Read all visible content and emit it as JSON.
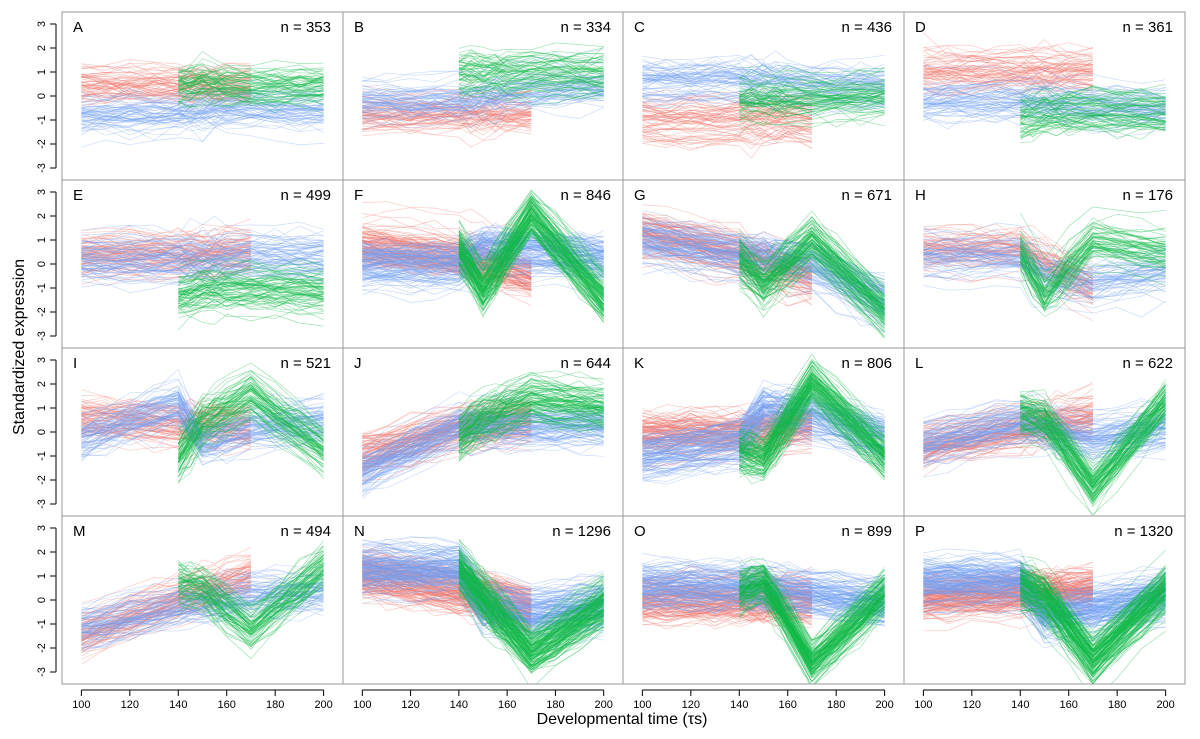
{
  "chart_data": {
    "type": "line",
    "xlabel": "Developmental time (τs)",
    "ylabel": "Standardized expression",
    "xlim": [
      92,
      208
    ],
    "ylim": [
      -3.5,
      3.5
    ],
    "x_ticks": [
      100,
      120,
      140,
      160,
      180,
      200
    ],
    "y_ticks": [
      -3,
      -2,
      -1,
      0,
      1,
      2,
      3
    ],
    "grid": false,
    "layout": "4x4",
    "colors": {
      "red": "#f1776b",
      "blue": "#6f9ef3",
      "green": "#0eb847"
    },
    "series_segments": {
      "red": [
        100,
        170
      ],
      "blue": [
        100,
        200
      ],
      "green": [
        140,
        200
      ]
    },
    "panels": [
      {
        "label": "A",
        "n_label": "n = 353",
        "n": 353,
        "red": {
          "x": [
            100,
            140,
            170
          ],
          "y": [
            0.4,
            0.4,
            0.4
          ]
        },
        "blue": {
          "x": [
            100,
            140,
            150,
            170,
            200
          ],
          "y": [
            -0.8,
            -0.7,
            -0.6,
            -0.5,
            -0.6
          ]
        },
        "green": {
          "x": [
            140,
            150,
            170,
            200
          ],
          "y": [
            0.4,
            0.5,
            0.3,
            0.4
          ]
        }
      },
      {
        "label": "B",
        "n_label": "n = 334",
        "n": 334,
        "red": {
          "x": [
            100,
            140,
            170
          ],
          "y": [
            -0.7,
            -0.7,
            -0.7
          ]
        },
        "blue": {
          "x": [
            100,
            140,
            170,
            200
          ],
          "y": [
            -0.3,
            -0.3,
            0.2,
            0.3
          ]
        },
        "green": {
          "x": [
            140,
            170,
            200
          ],
          "y": [
            0.9,
            0.9,
            0.9
          ]
        }
      },
      {
        "label": "C",
        "n_label": "n = 436",
        "n": 436,
        "red": {
          "x": [
            100,
            140,
            170
          ],
          "y": [
            -0.9,
            -0.9,
            -0.9
          ]
        },
        "blue": {
          "x": [
            100,
            140,
            170,
            200
          ],
          "y": [
            0.6,
            0.6,
            0.4,
            0.3
          ]
        },
        "green": {
          "x": [
            140,
            170,
            200
          ],
          "y": [
            -0.1,
            -0.1,
            0.0
          ]
        }
      },
      {
        "label": "D",
        "n_label": "n = 361",
        "n": 361,
        "red": {
          "x": [
            100,
            140,
            170
          ],
          "y": [
            1.0,
            1.0,
            1.0
          ]
        },
        "blue": {
          "x": [
            100,
            140,
            170,
            200
          ],
          "y": [
            -0.1,
            -0.1,
            -0.3,
            -0.4
          ]
        },
        "green": {
          "x": [
            140,
            150,
            170,
            200
          ],
          "y": [
            -1.0,
            -0.8,
            -0.7,
            -0.8
          ]
        }
      },
      {
        "label": "E",
        "n_label": "n = 499",
        "n": 499,
        "red": {
          "x": [
            100,
            140,
            170
          ],
          "y": [
            0.3,
            0.3,
            0.4
          ]
        },
        "blue": {
          "x": [
            100,
            140,
            170,
            200
          ],
          "y": [
            0.1,
            0.1,
            0.2,
            0.2
          ]
        },
        "green": {
          "x": [
            140,
            150,
            170,
            200
          ],
          "y": [
            -1.3,
            -1.0,
            -1.0,
            -1.1
          ]
        }
      },
      {
        "label": "F",
        "n_label": "n = 846",
        "n": 846,
        "red": {
          "x": [
            100,
            140,
            170
          ],
          "y": [
            0.8,
            0.3,
            -0.5
          ]
        },
        "blue": {
          "x": [
            100,
            140,
            150,
            170,
            200
          ],
          "y": [
            0.0,
            0.0,
            0.6,
            0.5,
            0.2
          ]
        },
        "green": {
          "x": [
            140,
            150,
            170,
            200
          ],
          "y": [
            0.6,
            -1.1,
            2.0,
            -1.5
          ]
        }
      },
      {
        "label": "G",
        "n_label": "n = 671",
        "n": 671,
        "red": {
          "x": [
            100,
            140,
            170
          ],
          "y": [
            1.3,
            0.4,
            -0.6
          ]
        },
        "blue": {
          "x": [
            100,
            140,
            170,
            200
          ],
          "y": [
            1.0,
            0.4,
            0.0,
            -1.6
          ]
        },
        "green": {
          "x": [
            140,
            150,
            170,
            200
          ],
          "y": [
            0.1,
            -0.9,
            0.9,
            -2.0
          ]
        }
      },
      {
        "label": "H",
        "n_label": "n = 176",
        "n": 176,
        "red": {
          "x": [
            100,
            140,
            170
          ],
          "y": [
            0.6,
            0.6,
            -1.0
          ]
        },
        "blue": {
          "x": [
            100,
            140,
            150,
            170,
            200
          ],
          "y": [
            0.3,
            0.3,
            -0.5,
            -0.8,
            -0.3
          ]
        },
        "green": {
          "x": [
            140,
            150,
            170,
            200
          ],
          "y": [
            0.5,
            -1.3,
            1.0,
            0.5
          ]
        }
      },
      {
        "label": "I",
        "n_label": "n = 521",
        "n": 521,
        "red": {
          "x": [
            100,
            140,
            170
          ],
          "y": [
            0.6,
            0.3,
            0.2
          ]
        },
        "blue": {
          "x": [
            100,
            140,
            150,
            170,
            200
          ],
          "y": [
            -0.4,
            1.0,
            -0.6,
            0.0,
            0.3
          ]
        },
        "green": {
          "x": [
            140,
            150,
            170,
            200
          ],
          "y": [
            -1.0,
            0.4,
            1.6,
            -0.7
          ]
        }
      },
      {
        "label": "J",
        "n_label": "n = 644",
        "n": 644,
        "red": {
          "x": [
            100,
            140,
            170
          ],
          "y": [
            -0.9,
            0.2,
            0.5
          ]
        },
        "blue": {
          "x": [
            100,
            140,
            170,
            200
          ],
          "y": [
            -1.6,
            0.3,
            0.3,
            0.3
          ]
        },
        "green": {
          "x": [
            140,
            150,
            170,
            200
          ],
          "y": [
            -0.2,
            0.6,
            1.4,
            1.0
          ]
        }
      },
      {
        "label": "K",
        "n_label": "n = 806",
        "n": 806,
        "red": {
          "x": [
            100,
            140,
            170
          ],
          "y": [
            -0.1,
            -0.1,
            0.3
          ]
        },
        "blue": {
          "x": [
            100,
            140,
            150,
            170,
            200
          ],
          "y": [
            -1.0,
            -0.4,
            0.9,
            0.7,
            -0.2
          ]
        },
        "green": {
          "x": [
            140,
            150,
            170,
            200
          ],
          "y": [
            -0.8,
            -1.1,
            2.0,
            -1.0
          ]
        }
      },
      {
        "label": "L",
        "n_label": "n = 622",
        "n": 622,
        "red": {
          "x": [
            100,
            140,
            170
          ],
          "y": [
            -0.6,
            0.1,
            0.6
          ]
        },
        "blue": {
          "x": [
            100,
            140,
            150,
            170,
            200
          ],
          "y": [
            -0.5,
            0.4,
            0.2,
            -0.3,
            0.2
          ]
        },
        "green": {
          "x": [
            140,
            150,
            170,
            200
          ],
          "y": [
            0.7,
            0.5,
            -2.3,
            1.2
          ]
        }
      },
      {
        "label": "M",
        "n_label": "n = 494",
        "n": 494,
        "red": {
          "x": [
            100,
            140,
            170
          ],
          "y": [
            -1.5,
            0.0,
            1.0
          ]
        },
        "blue": {
          "x": [
            100,
            140,
            170,
            200
          ],
          "y": [
            -1.2,
            -0.3,
            0.2,
            0.3
          ]
        },
        "green": {
          "x": [
            140,
            150,
            170,
            200
          ],
          "y": [
            0.6,
            0.4,
            -1.3,
            1.3
          ]
        }
      },
      {
        "label": "N",
        "n_label": "n = 1296",
        "n": 1296,
        "red": {
          "x": [
            100,
            140,
            170
          ],
          "y": [
            1.1,
            0.4,
            -0.4
          ]
        },
        "blue": {
          "x": [
            100,
            140,
            150,
            170,
            200
          ],
          "y": [
            1.2,
            1.2,
            -0.3,
            -0.7,
            -0.3
          ]
        },
        "green": {
          "x": [
            140,
            150,
            170,
            200
          ],
          "y": [
            1.3,
            0.1,
            -2.2,
            -0.2
          ]
        }
      },
      {
        "label": "O",
        "n_label": "n = 899",
        "n": 899,
        "red": {
          "x": [
            100,
            140,
            170
          ],
          "y": [
            0.0,
            0.0,
            0.0
          ]
        },
        "blue": {
          "x": [
            100,
            140,
            150,
            170,
            200
          ],
          "y": [
            0.5,
            0.5,
            0.4,
            0.2,
            -0.2
          ]
        },
        "green": {
          "x": [
            140,
            150,
            170,
            200
          ],
          "y": [
            0.4,
            0.8,
            -2.6,
            0.3
          ]
        }
      },
      {
        "label": "P",
        "n_label": "n = 1320",
        "n": 1320,
        "red": {
          "x": [
            100,
            140,
            170
          ],
          "y": [
            0.1,
            0.3,
            0.5
          ]
        },
        "blue": {
          "x": [
            100,
            140,
            150,
            170,
            200
          ],
          "y": [
            0.8,
            0.8,
            -0.6,
            -0.4,
            0.2
          ]
        },
        "green": {
          "x": [
            140,
            150,
            170,
            200
          ],
          "y": [
            0.7,
            0.2,
            -2.4,
            0.5
          ]
        }
      }
    ]
  }
}
